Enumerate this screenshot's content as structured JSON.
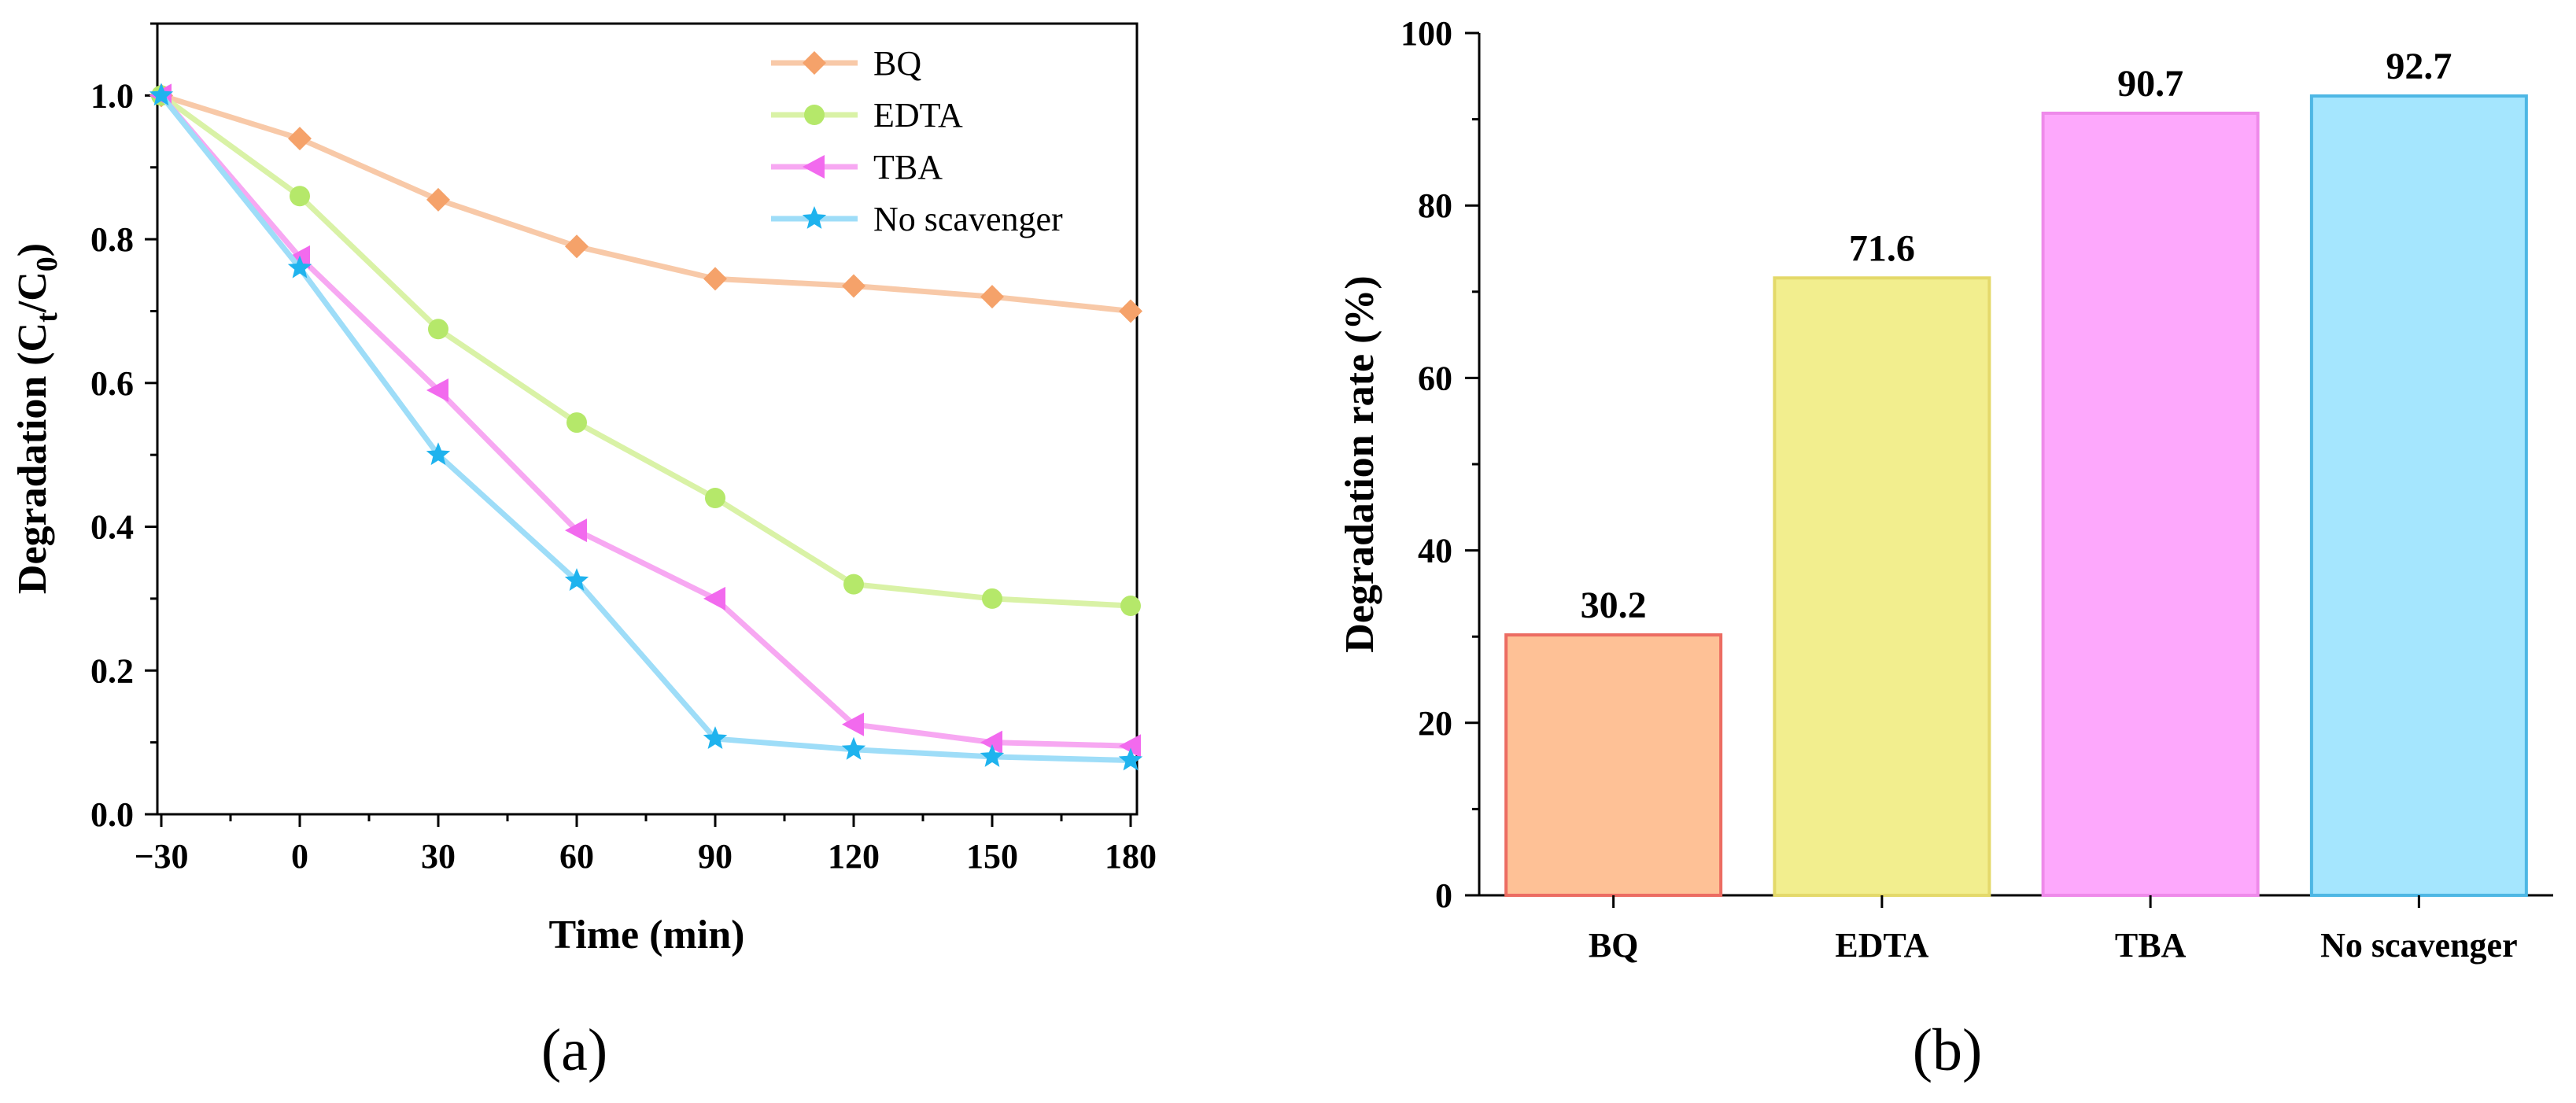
{
  "chart_data": [
    {
      "type": "line",
      "panel_label": "(a)",
      "xlabel": "Time (min)",
      "ylabel": {
        "prefix": "Degradation (C",
        "sub1": "t",
        "mid": "/C",
        "sub2": "0",
        "suffix": ")"
      },
      "x": [
        -30,
        0,
        30,
        60,
        90,
        120,
        150,
        180
      ],
      "xticks": [
        "−30",
        "0",
        "30",
        "60",
        "90",
        "120",
        "150",
        "180"
      ],
      "xlim": [
        -30,
        180
      ],
      "ylim": [
        0,
        1.1
      ],
      "yticks": [
        "0.0",
        "0.2",
        "0.4",
        "0.6",
        "0.8",
        "1.0"
      ],
      "ytick_values": [
        0,
        0.2,
        0.4,
        0.6,
        0.8,
        1.0
      ],
      "series": [
        {
          "name": "BQ",
          "marker": "diamond",
          "color": "#F8C9A8",
          "marker_color": "#F5A26A",
          "values": [
            1.0,
            0.94,
            0.855,
            0.79,
            0.745,
            0.735,
            0.72,
            0.7
          ]
        },
        {
          "name": "EDTA",
          "marker": "circle",
          "color": "#D9F2A6",
          "marker_color": "#B5E86A",
          "values": [
            1.0,
            0.86,
            0.675,
            0.545,
            0.44,
            0.32,
            0.3,
            0.29
          ]
        },
        {
          "name": "TBA",
          "marker": "triangle-left",
          "color": "#F7A8F2",
          "marker_color": "#F26AEE",
          "values": [
            1.0,
            0.775,
            0.59,
            0.395,
            0.3,
            0.125,
            0.1,
            0.095
          ]
        },
        {
          "name": "No scavenger",
          "marker": "star",
          "color": "#9EDDF8",
          "marker_color": "#1FB3EE",
          "values": [
            1.0,
            0.76,
            0.5,
            0.325,
            0.105,
            0.09,
            0.08,
            0.075
          ]
        }
      ]
    },
    {
      "type": "bar",
      "panel_label": "(b)",
      "xlabel": "",
      "ylabel": "Degradation rate (%)",
      "categories": [
        "BQ",
        "EDTA",
        "TBA",
        "No scavenger"
      ],
      "values": [
        30.2,
        71.6,
        90.7,
        92.7
      ],
      "value_labels": [
        "30.2",
        "71.6",
        "90.7",
        "92.7"
      ],
      "ylim": [
        0,
        100
      ],
      "yticks": [
        "0",
        "20",
        "40",
        "60",
        "80",
        "100"
      ],
      "ytick_values": [
        0,
        20,
        40,
        60,
        80,
        100
      ],
      "fill_colors": [
        "#FEC196",
        "#F2EE8E",
        "#FDA8FC",
        "#A5E6FE"
      ],
      "edge_colors": [
        "#EC6C62",
        "#E4D96A",
        "#EE8AEA",
        "#4EB7E4"
      ]
    }
  ]
}
